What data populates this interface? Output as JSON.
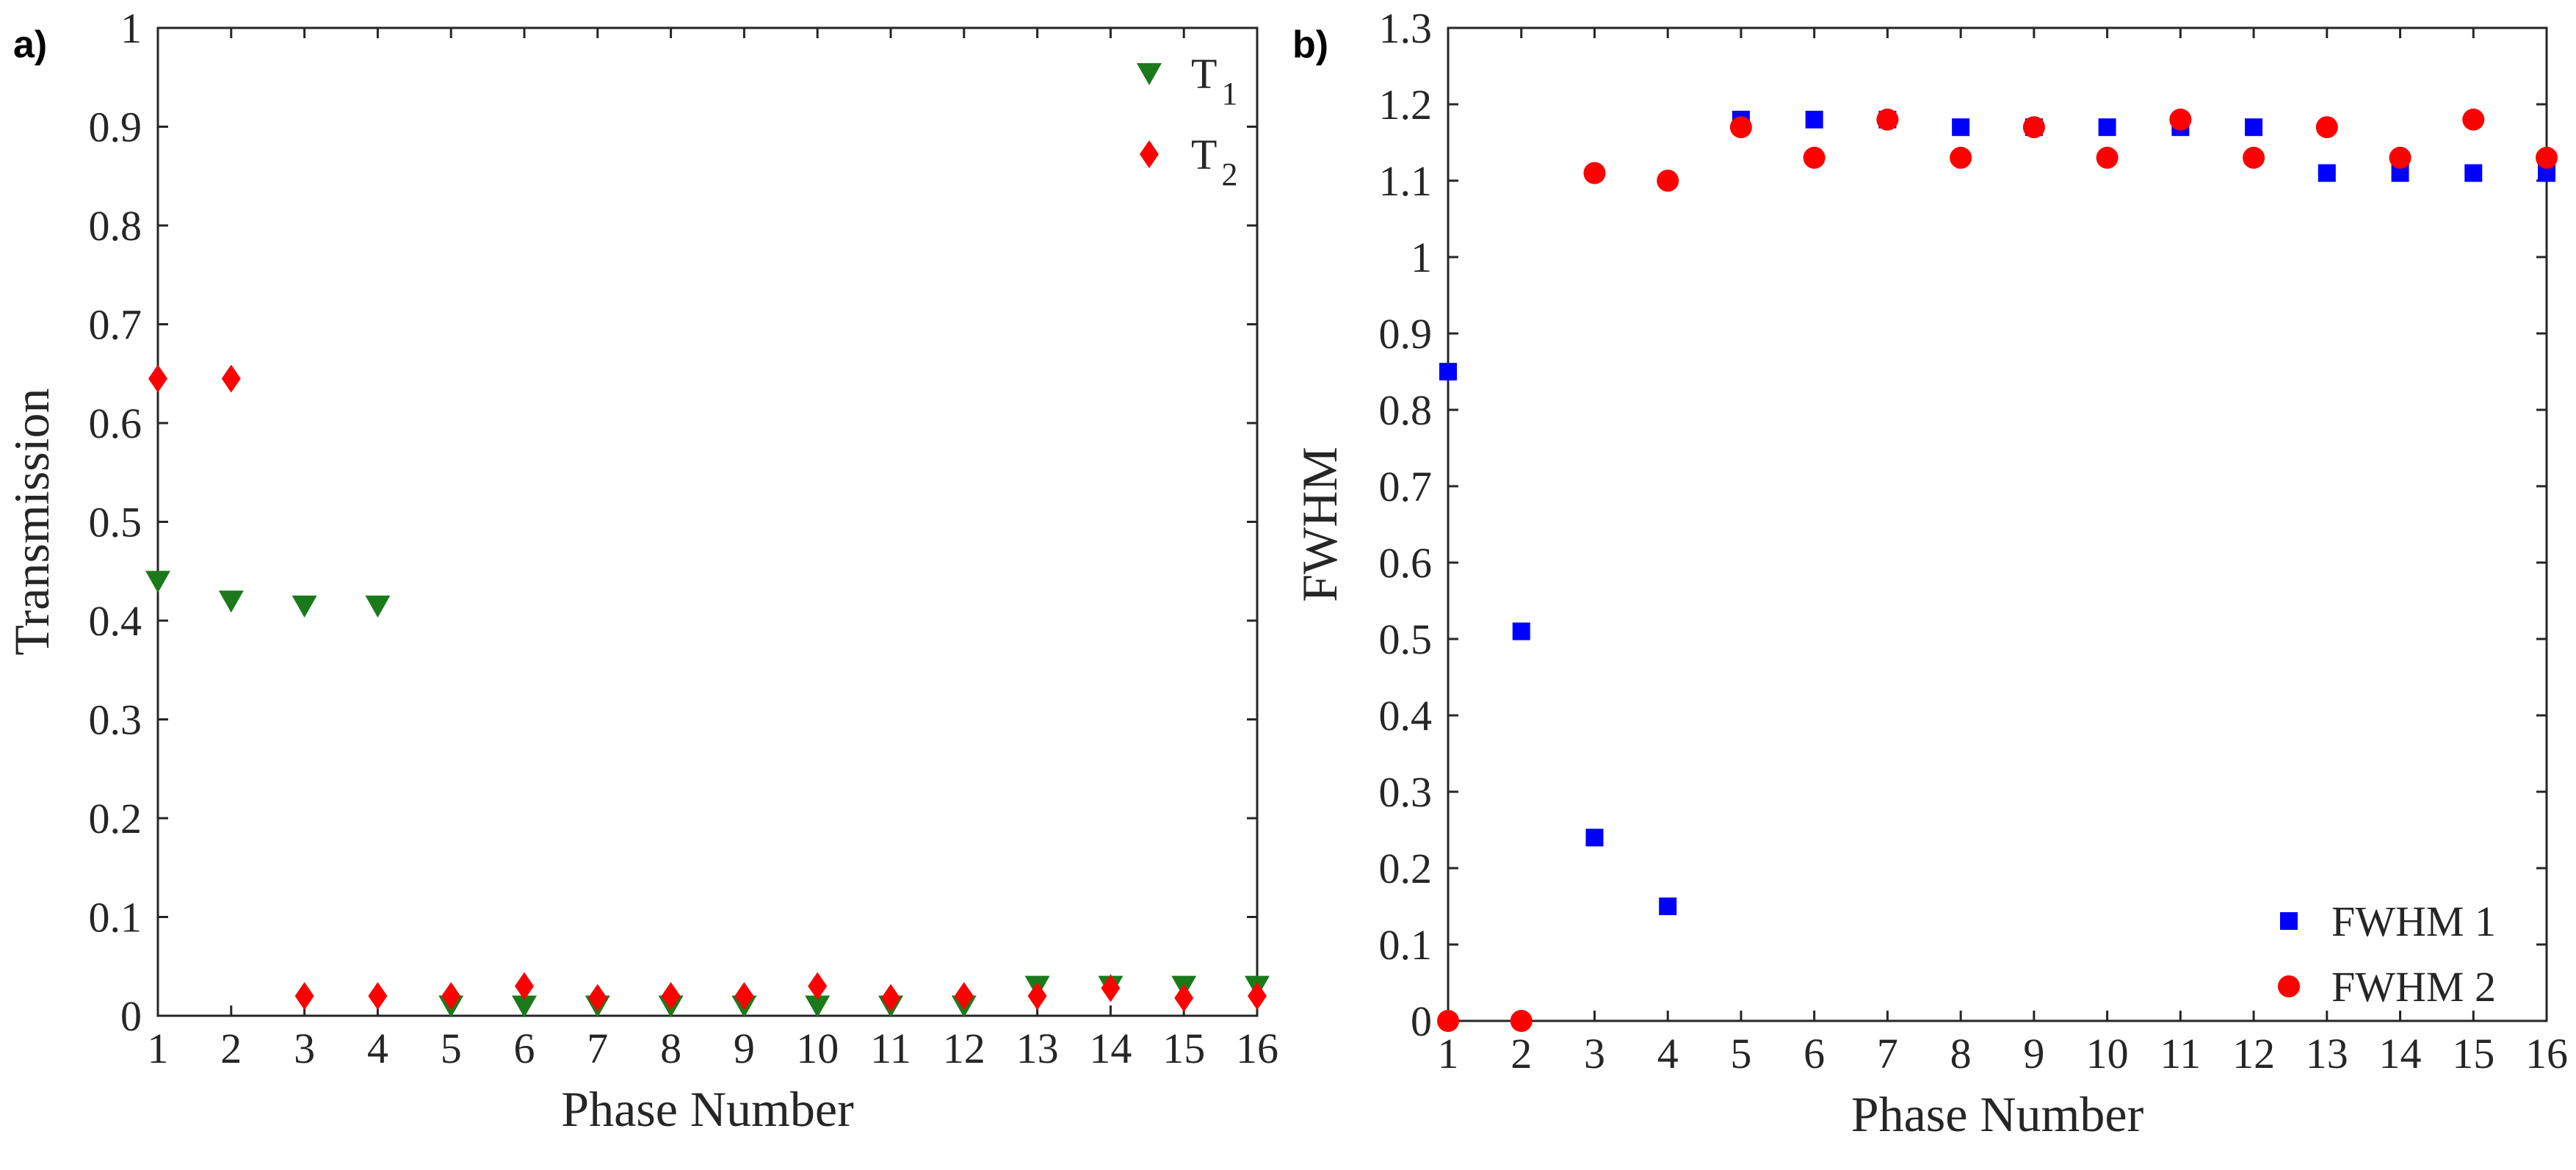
{
  "chart_data": [
    {
      "type": "scatter",
      "panel_label": "a)",
      "title": "",
      "xlabel": "Phase Number",
      "ylabel": "Transmission",
      "xlim": [
        1,
        16
      ],
      "ylim": [
        0,
        1
      ],
      "xticks": [
        "1",
        "2",
        "3",
        "4",
        "5",
        "6",
        "7",
        "8",
        "9",
        "10",
        "11",
        "12",
        "13",
        "14",
        "15",
        "16"
      ],
      "yticks": [
        "0",
        "0.1",
        "0.2",
        "0.3",
        "0.4",
        "0.5",
        "0.6",
        "0.7",
        "0.8",
        "0.9",
        "1"
      ],
      "grid": false,
      "legend_position": "top-right",
      "series": [
        {
          "name": "T",
          "subscript": "1",
          "marker": "triangle-down",
          "color": "#1a7a1a",
          "x": [
            1,
            2,
            3,
            4,
            5,
            6,
            7,
            8,
            9,
            10,
            11,
            12,
            13,
            14,
            15,
            16
          ],
          "y": [
            0.44,
            0.42,
            0.415,
            0.415,
            0.01,
            0.01,
            0.01,
            0.01,
            0.01,
            0.01,
            0.01,
            0.01,
            0.03,
            0.03,
            0.03,
            0.03
          ]
        },
        {
          "name": "T",
          "subscript": "2",
          "marker": "diamond",
          "color": "#ff0000",
          "x": [
            1,
            2,
            3,
            4,
            5,
            6,
            7,
            8,
            9,
            10,
            11,
            12,
            13,
            14,
            15,
            16
          ],
          "y": [
            0.645,
            0.645,
            0.02,
            0.02,
            0.02,
            0.03,
            0.018,
            0.02,
            0.02,
            0.03,
            0.018,
            0.02,
            0.02,
            0.028,
            0.018,
            0.02
          ]
        }
      ]
    },
    {
      "type": "scatter",
      "panel_label": "b)",
      "title": "",
      "xlabel": "Phase Number",
      "ylabel": "FWHM",
      "xlim": [
        1,
        16
      ],
      "ylim": [
        0,
        1.3
      ],
      "xticks": [
        "1",
        "2",
        "3",
        "4",
        "5",
        "6",
        "7",
        "8",
        "9",
        "10",
        "11",
        "12",
        "13",
        "14",
        "15",
        "16"
      ],
      "yticks": [
        "0",
        "0.1",
        "0.2",
        "0.3",
        "0.4",
        "0.5",
        "0.6",
        "0.7",
        "0.8",
        "0.9",
        "1",
        "1.1",
        "1.2",
        "1.3"
      ],
      "grid": false,
      "legend_position": "bottom-right",
      "series": [
        {
          "name": "FWHM 1",
          "marker": "square",
          "color": "#0000ff",
          "x": [
            1,
            2,
            3,
            4,
            5,
            6,
            7,
            8,
            9,
            10,
            11,
            12,
            13,
            14,
            15,
            16
          ],
          "y": [
            0.85,
            0.51,
            0.24,
            0.15,
            1.18,
            1.18,
            1.18,
            1.17,
            1.17,
            1.17,
            1.17,
            1.17,
            1.11,
            1.11,
            1.11,
            1.11
          ]
        },
        {
          "name": "FWHM 2",
          "marker": "circle",
          "color": "#ff0000",
          "x": [
            1,
            2,
            3,
            4,
            5,
            6,
            7,
            8,
            9,
            10,
            11,
            12,
            13,
            14,
            15,
            16
          ],
          "y": [
            0,
            0,
            1.11,
            1.1,
            1.17,
            1.13,
            1.18,
            1.13,
            1.17,
            1.13,
            1.18,
            1.13,
            1.17,
            1.13,
            1.18,
            1.13
          ]
        }
      ]
    }
  ]
}
